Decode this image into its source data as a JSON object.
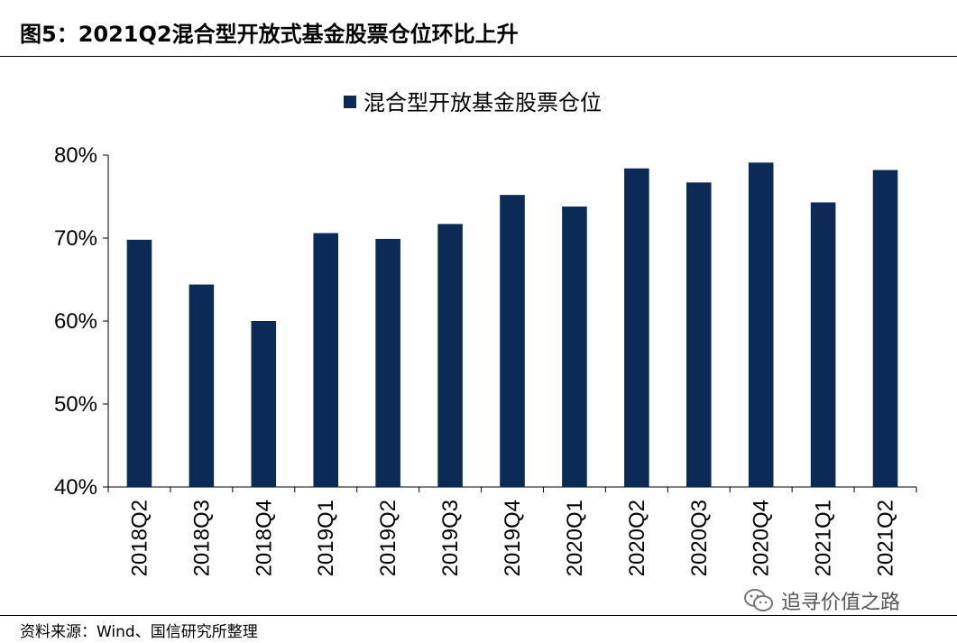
{
  "figure": {
    "title": "图5：2021Q2混合型开放式基金股票仓位环比上升",
    "source": "资料来源：Wind、国信研究所整理",
    "watermark": "追寻价值之路",
    "watermark_icon": "wechat-icon"
  },
  "colors": {
    "bar": "#0B2A56",
    "axis": "#000000"
  },
  "chart_data": {
    "type": "bar",
    "categories": [
      "2018Q2",
      "2018Q3",
      "2018Q4",
      "2019Q1",
      "2019Q2",
      "2019Q3",
      "2019Q4",
      "2020Q1",
      "2020Q2",
      "2020Q3",
      "2020Q4",
      "2021Q1",
      "2021Q2"
    ],
    "series": [
      {
        "name": "混合型开放基金股票仓位",
        "values": [
          69.8,
          64.4,
          60.0,
          70.6,
          69.9,
          71.7,
          75.2,
          73.8,
          78.4,
          76.7,
          79.1,
          74.3,
          78.2
        ]
      }
    ],
    "ylim": [
      40,
      80
    ],
    "yticks": [
      40,
      50,
      60,
      70,
      80
    ],
    "ytick_labels": [
      "40%",
      "50%",
      "60%",
      "70%",
      "80%"
    ],
    "legend_position": "top-center",
    "grid": false
  }
}
